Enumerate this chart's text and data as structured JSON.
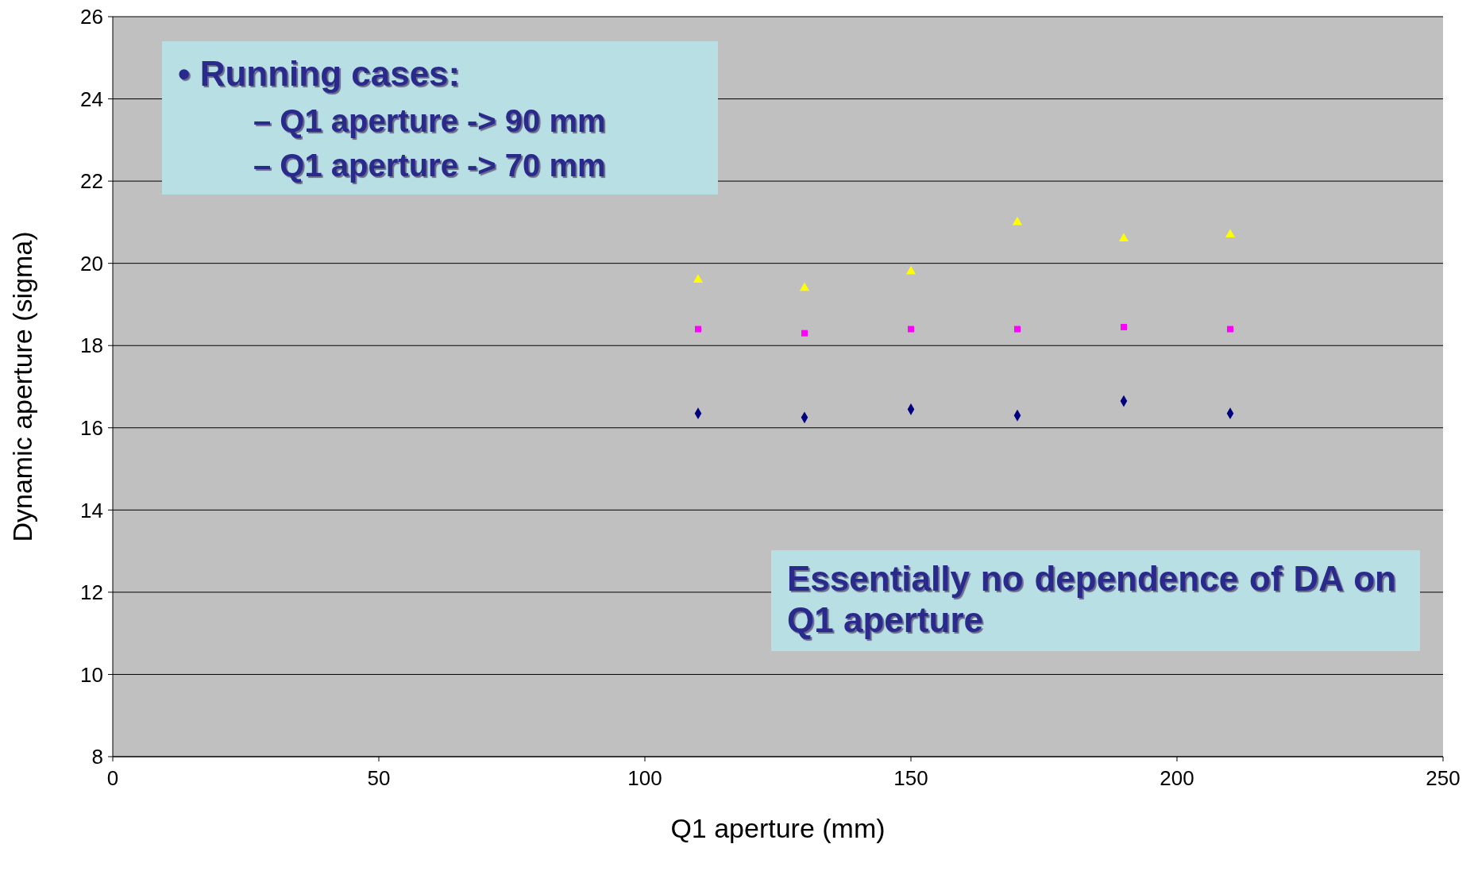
{
  "chart_data": {
    "type": "scatter",
    "xlabel": "Q1 aperture (mm)",
    "ylabel": "Dynamic aperture (sigma)",
    "x": [
      110,
      130,
      150,
      170,
      190,
      210
    ],
    "series": [
      {
        "color": "#ffff00",
        "marker": "triangle",
        "values": [
          19.6,
          19.4,
          19.8,
          21.0,
          20.6,
          20.7
        ]
      },
      {
        "color": "#ff00ff",
        "marker": "square",
        "values": [
          18.4,
          18.3,
          18.4,
          18.4,
          18.45,
          18.4
        ]
      },
      {
        "color": "#000080",
        "marker": "diamond",
        "values": [
          16.35,
          16.25,
          16.45,
          16.3,
          16.65,
          16.35
        ]
      }
    ],
    "xlim": [
      0,
      250
    ],
    "xticks": [
      0,
      50,
      100,
      150,
      200,
      250
    ],
    "ylim": [
      8,
      26
    ],
    "yticks": [
      8,
      10,
      12,
      14,
      16,
      18,
      20,
      22,
      24,
      26
    ],
    "grid": "y",
    "annotations": [
      "• Running cases:",
      "– Q1 aperture -> 90 mm",
      "– Q1 aperture -> 70 mm",
      "Essentially no dependence of DA on Q1 aperture"
    ]
  }
}
